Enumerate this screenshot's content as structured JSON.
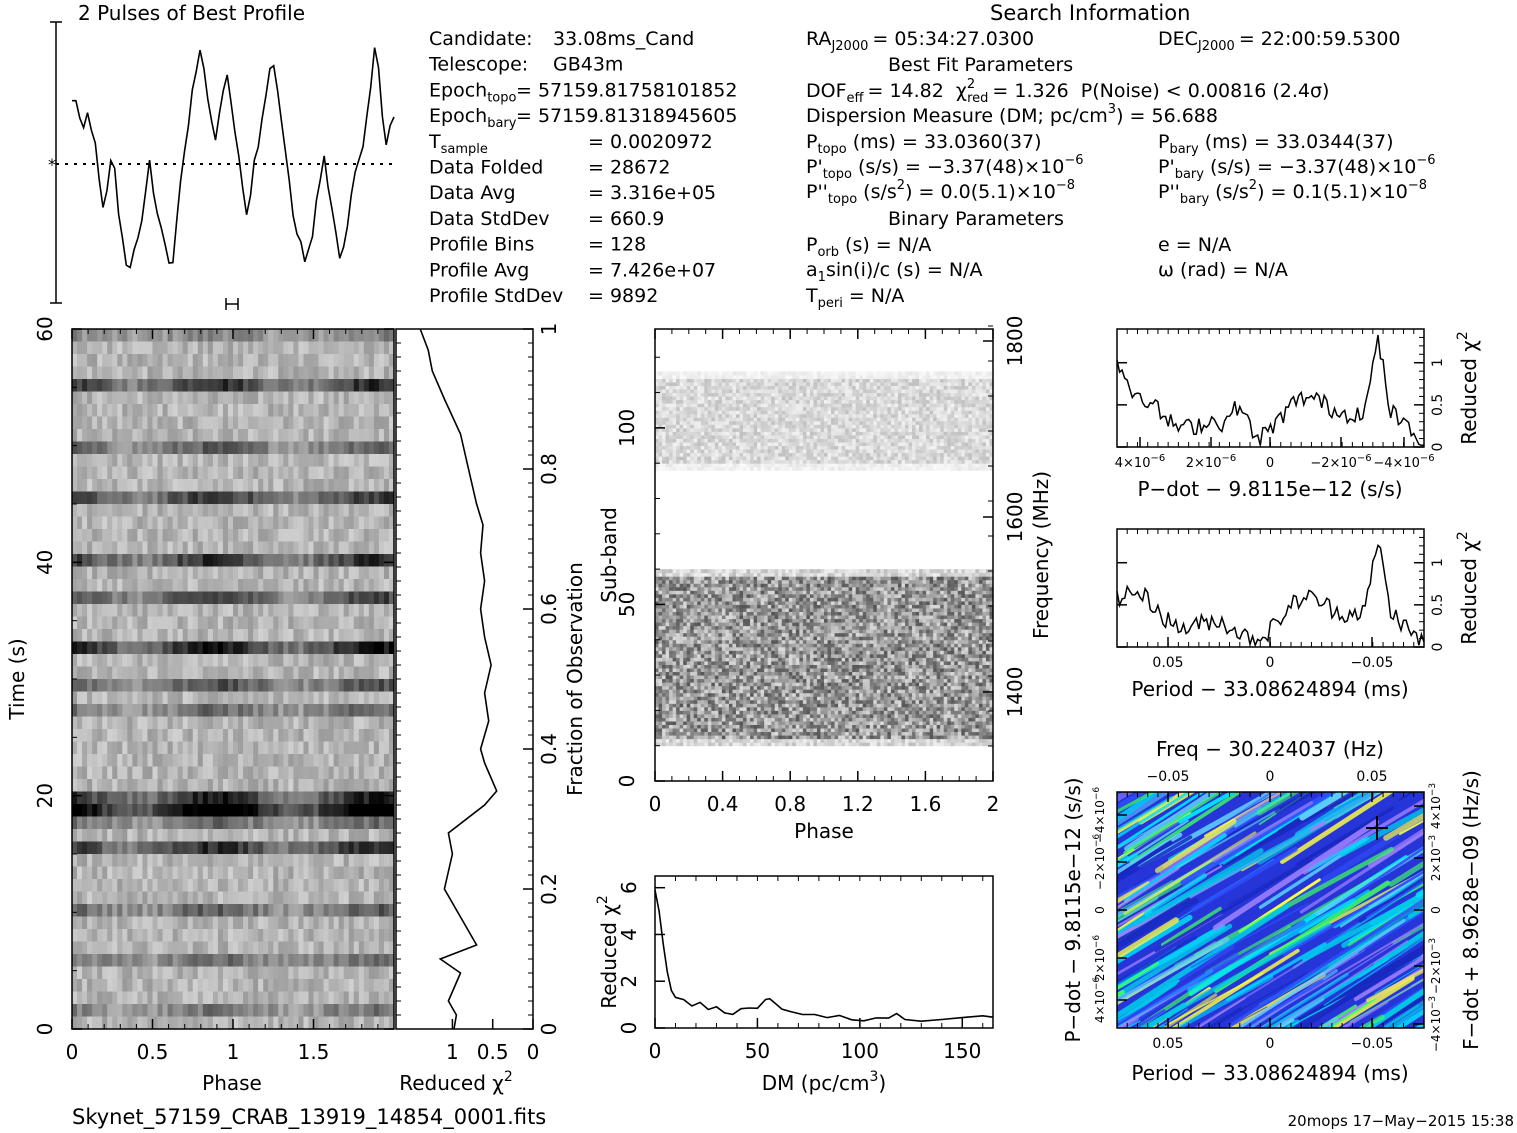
{
  "header": {
    "profile_title": "2 Pulses of Best Profile",
    "search_title": "Search Information",
    "best_fit_title": "Best Fit Parameters",
    "binary_title": "Binary Parameters"
  },
  "candidate_info": [
    {
      "label": "Candidate:",
      "value": "33.08ms_Cand"
    },
    {
      "label": "Telescope:",
      "value": "GB43m"
    },
    {
      "label": "Epoch",
      "sub": "topo",
      "value": "= 57159.81758101852"
    },
    {
      "label": "Epoch",
      "sub": "bary",
      "value": "= 57159.81318945605"
    },
    {
      "label": "T",
      "sub": "sample",
      "value": "0.0020972"
    },
    {
      "label": "Data Folded",
      "value": "28672"
    },
    {
      "label": "Data Avg",
      "value": "3.316e+05"
    },
    {
      "label": "Data StdDev",
      "value": "660.9"
    },
    {
      "label": "Profile Bins",
      "value": "128"
    },
    {
      "label": "Profile Avg",
      "value": "7.426e+07"
    },
    {
      "label": "Profile StdDev",
      "value": "9892"
    }
  ],
  "search_info": {
    "ra_label": "RA",
    "ra_sub": "J2000",
    "ra_value": "= 05:34:27.0300",
    "dec_label": "DEC",
    "dec_sub": "J2000",
    "dec_value": "= 22:00:59.5300",
    "dof_line": {
      "a": "DOF",
      "a_sub": "eff",
      "b": "= 14.82",
      "c": "χ",
      "c_sup": "2",
      "c_sub": "red",
      "d": "= 1.326",
      "e": "P(Noise) < 0.00816   (2.4σ)"
    },
    "dm_line": "Dispersion Measure (DM; pc/cm",
    "dm_line_sup": "3",
    "dm_line_end": ") = 56.688",
    "ptopo": {
      "label": "P",
      "sub": "topo",
      "value": "(ms)  =   33.0360(37)"
    },
    "pbary": {
      "label": "P",
      "sub": "bary",
      "value": "(ms)  =   33.0344(37)"
    },
    "pdtopo": {
      "label": "P'",
      "sub": "topo",
      "value": "(s/s) = −3.37(48)×10",
      "sup": "−6"
    },
    "pdbary": {
      "label": "P'",
      "sub": "bary",
      "value": "(s/s) = −3.37(48)×10",
      "sup": "−6"
    },
    "pddtopo": {
      "label": "P''",
      "sub": "topo",
      "value": "(s/s",
      "sup2": "2",
      "value2": ") = 0.0(5.1)×10",
      "sup": "−8"
    },
    "pddbary": {
      "label": "P''",
      "sub": "bary",
      "value": "(s/s",
      "sup2": "2",
      "value2": ") =  0.1(5.1)×10",
      "sup": "−8"
    },
    "porb": {
      "label": "P",
      "sub": "orb",
      "value": "(s) = N/A"
    },
    "ecc": "e = N/A",
    "a1": {
      "a": "a",
      "sub": "1",
      "b": "sin(i)/c (s) = N/A"
    },
    "omega": "ω (rad) = N/A",
    "tperi": {
      "label": "T",
      "sub": "peri",
      "value": "= N/A"
    }
  },
  "footer": {
    "filename": "Skynet_57159_CRAB_13919_14854_0001.fits",
    "stamp": "20mops 17−May−2015 15:38"
  },
  "colors": {
    "gray_dark": "#1a1a1a",
    "contour_blue": "#2030d0",
    "contour_cyan": "#00e0ff",
    "contour_green": "#40ff60",
    "contour_yellow": "#ffff40",
    "contour_violet": "#a080ff"
  },
  "chart_data": [
    {
      "type": "line",
      "name": "profile",
      "title": "2 Pulses of Best Profile",
      "xlim": [
        0,
        2
      ],
      "note_values": [
        0.55,
        0.52,
        0.4,
        0.35,
        0.45,
        0.3,
        0.15,
        -0.1,
        -0.35,
        -0.2,
        0.05,
        -0.05,
        -0.4,
        -0.65,
        -0.85,
        -0.9,
        -0.75,
        -0.6,
        -0.45,
        -0.2,
        0.0,
        -0.25,
        -0.4,
        -0.55,
        -0.7,
        -0.85,
        -0.8,
        -0.45,
        -0.15,
        0.1,
        0.35,
        0.6,
        0.75,
        0.95,
        0.8,
        0.55,
        0.4,
        0.2,
        0.45,
        0.6,
        0.75,
        0.55,
        0.3,
        0.05,
        -0.2,
        -0.4,
        -0.25,
        0.0,
        0.15,
        0.35,
        0.6,
        0.8,
        0.85,
        0.6,
        0.35,
        0.1,
        -0.15,
        -0.4,
        -0.6,
        -0.7,
        -0.85,
        -0.75,
        -0.6,
        -0.35,
        -0.15,
        0.05,
        -0.2,
        -0.4,
        -0.55,
        -0.8,
        -0.7,
        -0.5,
        -0.25,
        -0.05,
        0.0,
        0.15,
        0.4,
        0.65,
        1.0,
        0.8,
        0.4,
        0.2,
        0.3,
        0.4
      ]
    },
    {
      "type": "heatmap",
      "name": "time_vs_phase",
      "xlabel": "Phase",
      "ylabel": "Time (s)",
      "xticks": [
        "0",
        "0.5",
        "1",
        "1.5"
      ],
      "yticks": [
        "0",
        "20",
        "40",
        "60"
      ],
      "xlim": [
        0,
        2
      ],
      "ylim": [
        0,
        60
      ]
    },
    {
      "type": "line",
      "name": "reduced_chi2_vs_fraction",
      "xlabel": "Reduced χ²",
      "ylabel": "Fraction of Observation",
      "xticks": [
        "1",
        "0.5",
        "0"
      ],
      "yticks": [
        "0",
        "0.2",
        "0.4",
        "0.6",
        "0.8",
        "1"
      ],
      "xlim": [
        1.7,
        0
      ],
      "ylim": [
        0,
        1
      ],
      "points": [
        [
          0.98,
          0
        ],
        [
          0.95,
          0.02
        ],
        [
          1.05,
          0.04
        ],
        [
          0.9,
          0.08
        ],
        [
          1.15,
          0.1
        ],
        [
          0.7,
          0.12
        ],
        [
          0.9,
          0.16
        ],
        [
          1.1,
          0.2
        ],
        [
          1.0,
          0.25
        ],
        [
          1.05,
          0.28
        ],
        [
          0.6,
          0.32
        ],
        [
          0.45,
          0.34
        ],
        [
          0.6,
          0.38
        ],
        [
          0.65,
          0.4
        ],
        [
          0.55,
          0.44
        ],
        [
          0.6,
          0.48
        ],
        [
          0.52,
          0.52
        ],
        [
          0.6,
          0.56
        ],
        [
          0.65,
          0.6
        ],
        [
          0.6,
          0.64
        ],
        [
          0.65,
          0.68
        ],
        [
          0.62,
          0.72
        ],
        [
          0.7,
          0.75
        ],
        [
          0.8,
          0.8
        ],
        [
          0.9,
          0.85
        ],
        [
          1.1,
          0.9
        ],
        [
          1.25,
          0.94
        ],
        [
          1.3,
          0.97
        ],
        [
          1.4,
          1.0
        ]
      ]
    },
    {
      "type": "heatmap",
      "name": "subband_vs_phase",
      "xlabel": "Phase",
      "ylabel": "Sub-band",
      "y2label": "Frequency (MHz)",
      "xticks": [
        "0",
        "0.4",
        "0.8",
        "1.2",
        "1.6",
        "2"
      ],
      "yticks": [
        "0",
        "50",
        "100"
      ],
      "y2ticks": [
        "1400",
        "1600",
        "1800"
      ],
      "xlim": [
        0,
        2
      ],
      "ylim": [
        0,
        128
      ]
    },
    {
      "type": "line",
      "name": "reduced_chi2_vs_dm",
      "xlabel": "DM (pc/cm³)",
      "ylabel": "Reduced χ²",
      "xticks": [
        "0",
        "50",
        "100",
        "150"
      ],
      "yticks": [
        "0",
        "2",
        "4",
        "6"
      ],
      "xlim": [
        0,
        165
      ],
      "ylim": [
        0,
        6.5
      ],
      "points": [
        [
          0,
          5.9
        ],
        [
          2,
          5.0
        ],
        [
          4,
          3.6
        ],
        [
          6,
          2.4
        ],
        [
          8,
          1.6
        ],
        [
          10,
          1.3
        ],
        [
          14,
          1.2
        ],
        [
          18,
          1.0
        ],
        [
          22,
          1.1
        ],
        [
          26,
          0.8
        ],
        [
          30,
          0.9
        ],
        [
          34,
          0.7
        ],
        [
          38,
          0.6
        ],
        [
          42,
          0.8
        ],
        [
          46,
          0.9
        ],
        [
          50,
          0.8
        ],
        [
          54,
          1.2
        ],
        [
          56,
          1.3
        ],
        [
          58,
          1.1
        ],
        [
          62,
          0.8
        ],
        [
          66,
          0.7
        ],
        [
          72,
          0.6
        ],
        [
          78,
          0.6
        ],
        [
          84,
          0.5
        ],
        [
          90,
          0.5
        ],
        [
          96,
          0.4
        ],
        [
          102,
          0.3
        ],
        [
          108,
          0.4
        ],
        [
          114,
          0.4
        ],
        [
          118,
          0.6
        ],
        [
          122,
          0.4
        ],
        [
          130,
          0.3
        ],
        [
          140,
          0.4
        ],
        [
          150,
          0.5
        ],
        [
          160,
          0.5
        ],
        [
          165,
          0.5
        ]
      ]
    },
    {
      "type": "line",
      "name": "pdot_chi2",
      "xlabel": "P−dot − 9.8115e−12 (s/s)",
      "ylabel": "Reduced χ²",
      "xlim": [
        4.8,
        -4.8
      ],
      "ylim": [
        0,
        1.4
      ],
      "yticks": [
        "0",
        "0.5",
        "1"
      ]
    },
    {
      "type": "line",
      "name": "period_chi2",
      "xlabel": "Period − 33.08624894 (ms)",
      "ylabel": "Reduced χ²",
      "xticks": [
        "0.05",
        "0",
        "−0.05"
      ],
      "yticks": [
        "0",
        "0.5",
        "1"
      ],
      "xlim": [
        0.075,
        -0.075
      ],
      "ylim": [
        0,
        1.4
      ]
    },
    {
      "type": "heatmap",
      "name": "period_pdot_plane",
      "title": "Freq − 30.224037 (Hz)",
      "xlabel": "Period − 33.08624894 (ms)",
      "ylabel": "P−dot − 9.8115e−12 (s/s)",
      "y2label": "F−dot + 8.9628e−09 (Hz/s)",
      "xticks": [
        "0.05",
        "0",
        "−0.05"
      ],
      "top_xticks": [
        "−0.05",
        "0",
        "0.05"
      ]
    }
  ]
}
